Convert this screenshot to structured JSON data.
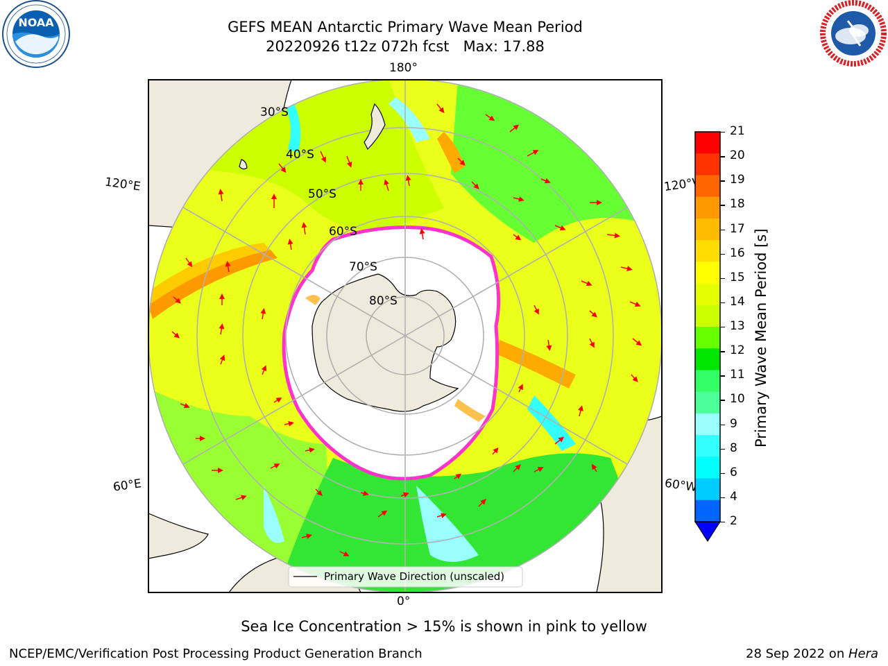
{
  "title": {
    "line1": "GEFS MEAN Antarctic Primary Wave Mean Period",
    "line2": "20220926 t12z 072h fcst   Max: 17.88"
  },
  "logos": {
    "left": {
      "name": "NOAA",
      "text": "NOAA",
      "icon": "noaa-logo"
    },
    "right": {
      "name": "National Weather Service",
      "icon": "nws-logo"
    }
  },
  "map": {
    "projection": "south-polar-stereographic",
    "lon_labels": {
      "top": "180°",
      "bottom": "0°",
      "upper_left": "120°E",
      "upper_right": "120°W",
      "lower_left": "60°E",
      "lower_right": "60°W"
    },
    "lat_labels": [
      "30°S",
      "40°S",
      "50°S",
      "60°S",
      "70°S",
      "80°S"
    ],
    "colors": {
      "land": "#efebdc",
      "ice_edge": "#ff33cc",
      "ice_yellow": "#ffc14d",
      "arrows": "#ff0000",
      "grid": "#b0b0b0"
    }
  },
  "legend": {
    "label": "Primary Wave Direction (unscaled)"
  },
  "colorbar": {
    "label": "Primary Wave Mean Period [s]",
    "ticks": [
      "21",
      "20",
      "19",
      "18",
      "17",
      "16",
      "15",
      "14",
      "13",
      "12",
      "11",
      "10",
      "9",
      "8",
      "6",
      "4",
      "2"
    ],
    "colors": [
      "#ff0000",
      "#ff3300",
      "#ff6600",
      "#ff9900",
      "#ffbb00",
      "#ffdd00",
      "#ffff00",
      "#e6ff00",
      "#ccff00",
      "#66ff00",
      "#00e600",
      "#33ff66",
      "#4dff99",
      "#99ffff",
      "#33ffff",
      "#00ffff",
      "#00ccff",
      "#0066ff"
    ],
    "extend_color": "#0000ff"
  },
  "annotation": "Sea Ice Concentration > 15% is shown in pink to yellow",
  "footer": {
    "left": "NCEP/EMC/Verification Post Processing Product Generation Branch",
    "date": "28 Sep 2022 on ",
    "machine": "Hera"
  }
}
